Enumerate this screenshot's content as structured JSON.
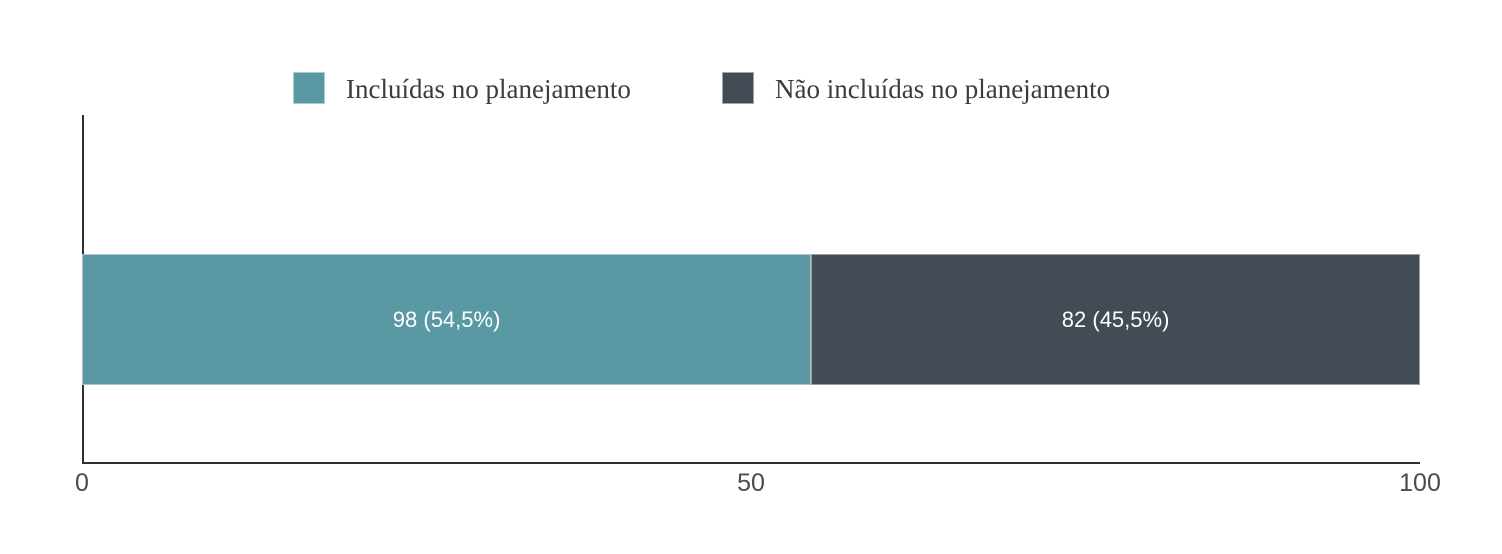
{
  "chart_data": {
    "type": "bar",
    "orientation": "horizontal",
    "stacked": true,
    "title": "",
    "xlabel": "",
    "ylabel": "",
    "xlim": [
      0,
      100
    ],
    "x_ticks": [
      "0",
      "50",
      "100"
    ],
    "grid": false,
    "legend_position": "top",
    "categories": [
      ""
    ],
    "series": [
      {
        "name": "Incluídas no planejamento",
        "count": 98,
        "percent": 54.5,
        "data_label": "98 (54,5%)",
        "color": "#5A98A4"
      },
      {
        "name": "Não incluídas no planejamento",
        "count": 82,
        "percent": 45.5,
        "data_label": "82 (45,5%)",
        "color": "#434B55"
      }
    ]
  },
  "legend": {
    "items": [
      {
        "label": "Incluídas no planejamento",
        "color": "#5A98A4"
      },
      {
        "label": "Não incluídas no planejamento",
        "color": "#434B55"
      }
    ]
  },
  "bar": {
    "segments": [
      {
        "label": "98 (54,5%)",
        "percent": 54.5,
        "color": "#5A98A4",
        "text_color": "#ffffff"
      },
      {
        "label": "82 (45,5%)",
        "percent": 45.5,
        "color": "#434B55",
        "text_color": "#ffffff"
      }
    ]
  },
  "axis": {
    "tick_0": "0",
    "tick_50": "50",
    "tick_100": "100"
  }
}
